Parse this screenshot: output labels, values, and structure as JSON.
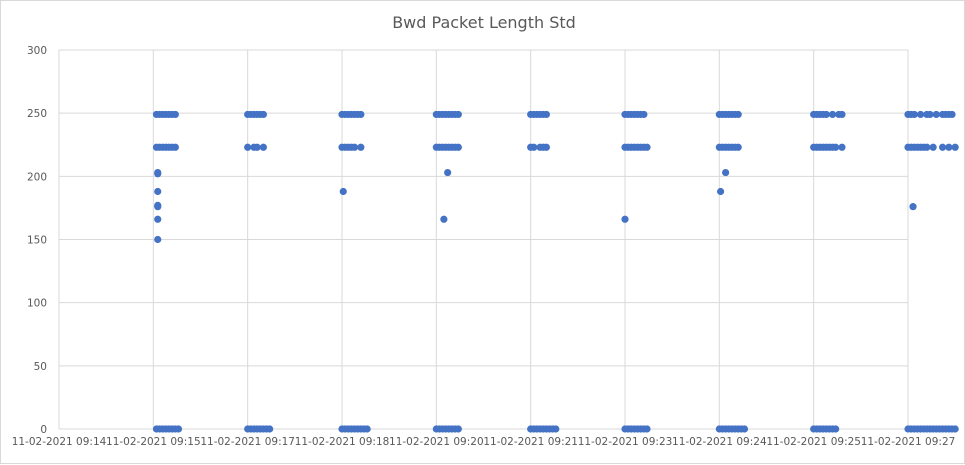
{
  "chart_data": {
    "type": "scatter",
    "title": "Bwd Packet Length Std",
    "xlabel": "",
    "ylabel": "",
    "ylim": [
      0,
      300
    ],
    "y_ticks": [
      0,
      50,
      100,
      150,
      200,
      250,
      300
    ],
    "x_ticks": [
      "11-02-2021 09:14",
      "11-02-2021 09:15",
      "11-02-2021 09:17",
      "11-02-2021 09:18",
      "11-02-2021 09:20",
      "11-02-2021 09:21",
      "11-02-2021 09:23",
      "11-02-2021 09:24",
      "11-02-2021 09:25",
      "11-02-2021 09:27"
    ],
    "x_tick_minutes": [
      0,
      1.5,
      3,
      4.5,
      6,
      7.5,
      9,
      10.5,
      12,
      13.5
    ],
    "grid": true,
    "legend": "none",
    "marker_color": "#4472c4",
    "series": [
      {
        "points": [
          [
            1.55,
            0
          ],
          [
            1.6,
            0
          ],
          [
            1.65,
            0
          ],
          [
            1.7,
            0
          ],
          [
            1.75,
            0
          ],
          [
            1.8,
            0
          ],
          [
            1.85,
            0
          ],
          [
            1.9,
            0
          ],
          [
            3.0,
            0
          ],
          [
            3.05,
            0
          ],
          [
            3.1,
            0
          ],
          [
            3.15,
            0
          ],
          [
            3.2,
            0
          ],
          [
            3.25,
            0
          ],
          [
            3.3,
            0
          ],
          [
            3.35,
            0
          ],
          [
            4.5,
            0
          ],
          [
            4.55,
            0
          ],
          [
            4.6,
            0
          ],
          [
            4.65,
            0
          ],
          [
            4.7,
            0
          ],
          [
            4.75,
            0
          ],
          [
            4.8,
            0
          ],
          [
            4.85,
            0
          ],
          [
            4.9,
            0
          ],
          [
            6.0,
            0
          ],
          [
            6.05,
            0
          ],
          [
            6.1,
            0
          ],
          [
            6.15,
            0
          ],
          [
            6.2,
            0
          ],
          [
            6.25,
            0
          ],
          [
            6.3,
            0
          ],
          [
            6.35,
            0
          ],
          [
            7.5,
            0
          ],
          [
            7.55,
            0
          ],
          [
            7.6,
            0
          ],
          [
            7.65,
            0
          ],
          [
            7.7,
            0
          ],
          [
            7.75,
            0
          ],
          [
            7.8,
            0
          ],
          [
            7.85,
            0
          ],
          [
            7.9,
            0
          ],
          [
            9.0,
            0
          ],
          [
            9.05,
            0
          ],
          [
            9.1,
            0
          ],
          [
            9.15,
            0
          ],
          [
            9.2,
            0
          ],
          [
            9.25,
            0
          ],
          [
            9.3,
            0
          ],
          [
            9.35,
            0
          ],
          [
            10.5,
            0
          ],
          [
            10.55,
            0
          ],
          [
            10.6,
            0
          ],
          [
            10.65,
            0
          ],
          [
            10.7,
            0
          ],
          [
            10.75,
            0
          ],
          [
            10.8,
            0
          ],
          [
            10.85,
            0
          ],
          [
            10.9,
            0
          ],
          [
            12.0,
            0
          ],
          [
            12.05,
            0
          ],
          [
            12.1,
            0
          ],
          [
            12.15,
            0
          ],
          [
            12.2,
            0
          ],
          [
            12.25,
            0
          ],
          [
            12.3,
            0
          ],
          [
            12.35,
            0
          ],
          [
            13.5,
            0
          ],
          [
            13.55,
            0
          ],
          [
            13.6,
            0
          ],
          [
            13.65,
            0
          ],
          [
            13.7,
            0
          ],
          [
            13.75,
            0
          ],
          [
            13.8,
            0
          ],
          [
            13.85,
            0
          ],
          [
            13.9,
            0
          ],
          [
            13.95,
            0
          ],
          [
            14.0,
            0
          ],
          [
            14.05,
            0
          ],
          [
            14.1,
            0
          ],
          [
            14.15,
            0
          ],
          [
            14.2,
            0
          ],
          [
            14.25,
            0
          ],
          [
            1.55,
            249
          ],
          [
            1.6,
            249
          ],
          [
            1.65,
            249
          ],
          [
            1.7,
            249
          ],
          [
            1.75,
            249
          ],
          [
            1.8,
            249
          ],
          [
            1.85,
            249
          ],
          [
            3.0,
            249
          ],
          [
            3.05,
            249
          ],
          [
            3.1,
            249
          ],
          [
            3.15,
            249
          ],
          [
            3.2,
            249
          ],
          [
            3.25,
            249
          ],
          [
            4.5,
            249
          ],
          [
            4.55,
            249
          ],
          [
            4.6,
            249
          ],
          [
            4.65,
            249
          ],
          [
            4.7,
            249
          ],
          [
            4.75,
            249
          ],
          [
            4.8,
            249
          ],
          [
            6.0,
            249
          ],
          [
            6.05,
            249
          ],
          [
            6.1,
            249
          ],
          [
            6.15,
            249
          ],
          [
            6.2,
            249
          ],
          [
            6.25,
            249
          ],
          [
            6.3,
            249
          ],
          [
            6.35,
            249
          ],
          [
            7.5,
            249
          ],
          [
            7.55,
            249
          ],
          [
            7.6,
            249
          ],
          [
            7.65,
            249
          ],
          [
            7.7,
            249
          ],
          [
            7.75,
            249
          ],
          [
            9.0,
            249
          ],
          [
            9.05,
            249
          ],
          [
            9.1,
            249
          ],
          [
            9.15,
            249
          ],
          [
            9.2,
            249
          ],
          [
            9.25,
            249
          ],
          [
            9.3,
            249
          ],
          [
            10.5,
            249
          ],
          [
            10.55,
            249
          ],
          [
            10.6,
            249
          ],
          [
            10.65,
            249
          ],
          [
            10.7,
            249
          ],
          [
            10.75,
            249
          ],
          [
            10.8,
            249
          ],
          [
            12.0,
            249
          ],
          [
            12.05,
            249
          ],
          [
            12.1,
            249
          ],
          [
            12.15,
            249
          ],
          [
            12.2,
            249
          ],
          [
            12.3,
            249
          ],
          [
            12.4,
            249
          ],
          [
            12.45,
            249
          ],
          [
            13.5,
            249
          ],
          [
            13.55,
            249
          ],
          [
            13.6,
            249
          ],
          [
            13.7,
            249
          ],
          [
            13.8,
            249
          ],
          [
            13.85,
            249
          ],
          [
            13.95,
            249
          ],
          [
            14.05,
            249
          ],
          [
            14.1,
            249
          ],
          [
            14.15,
            249
          ],
          [
            14.2,
            249
          ],
          [
            1.55,
            223
          ],
          [
            1.6,
            223
          ],
          [
            1.65,
            223
          ],
          [
            1.7,
            223
          ],
          [
            1.75,
            223
          ],
          [
            1.8,
            223
          ],
          [
            1.85,
            223
          ],
          [
            3.0,
            223
          ],
          [
            3.1,
            223
          ],
          [
            3.15,
            223
          ],
          [
            3.25,
            223
          ],
          [
            4.5,
            223
          ],
          [
            4.55,
            223
          ],
          [
            4.6,
            223
          ],
          [
            4.65,
            223
          ],
          [
            4.7,
            223
          ],
          [
            4.8,
            223
          ],
          [
            6.0,
            223
          ],
          [
            6.05,
            223
          ],
          [
            6.1,
            223
          ],
          [
            6.15,
            223
          ],
          [
            6.2,
            223
          ],
          [
            6.25,
            223
          ],
          [
            6.3,
            223
          ],
          [
            6.35,
            223
          ],
          [
            7.5,
            223
          ],
          [
            7.55,
            223
          ],
          [
            7.65,
            223
          ],
          [
            7.7,
            223
          ],
          [
            7.75,
            223
          ],
          [
            9.0,
            223
          ],
          [
            9.05,
            223
          ],
          [
            9.1,
            223
          ],
          [
            9.15,
            223
          ],
          [
            9.2,
            223
          ],
          [
            9.25,
            223
          ],
          [
            9.3,
            223
          ],
          [
            9.35,
            223
          ],
          [
            10.5,
            223
          ],
          [
            10.55,
            223
          ],
          [
            10.6,
            223
          ],
          [
            10.65,
            223
          ],
          [
            10.7,
            223
          ],
          [
            10.75,
            223
          ],
          [
            10.8,
            223
          ],
          [
            12.0,
            223
          ],
          [
            12.05,
            223
          ],
          [
            12.1,
            223
          ],
          [
            12.15,
            223
          ],
          [
            12.2,
            223
          ],
          [
            12.25,
            223
          ],
          [
            12.3,
            223
          ],
          [
            12.35,
            223
          ],
          [
            12.45,
            223
          ],
          [
            13.5,
            223
          ],
          [
            13.55,
            223
          ],
          [
            13.6,
            223
          ],
          [
            13.65,
            223
          ],
          [
            13.7,
            223
          ],
          [
            13.75,
            223
          ],
          [
            13.8,
            223
          ],
          [
            13.9,
            223
          ],
          [
            14.05,
            223
          ],
          [
            14.15,
            223
          ],
          [
            14.25,
            223
          ],
          [
            1.57,
            203
          ],
          [
            1.57,
            202
          ],
          [
            1.57,
            188
          ],
          [
            1.57,
            177
          ],
          [
            1.57,
            176
          ],
          [
            1.57,
            166
          ],
          [
            1.57,
            150
          ],
          [
            4.52,
            188
          ],
          [
            6.18,
            203
          ],
          [
            6.12,
            166
          ],
          [
            9.0,
            166
          ],
          [
            10.52,
            188
          ],
          [
            10.6,
            203
          ],
          [
            13.58,
            176
          ]
        ]
      }
    ]
  }
}
